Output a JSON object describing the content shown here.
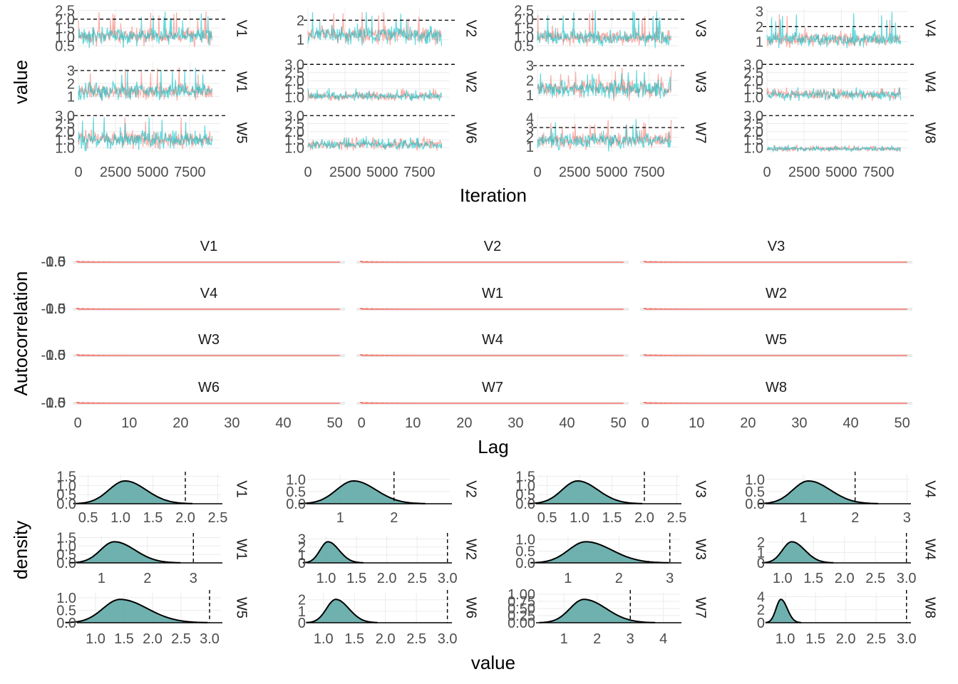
{
  "chart_data": [
    {
      "type": "line",
      "kind": "trace",
      "xlabel": "Iteration",
      "ylabel": "value",
      "grid": true,
      "legend": "none",
      "series_colors": [
        "#f8766d",
        "#00bfc4"
      ],
      "reference_line": "dashed",
      "x_ticks": [
        "0",
        "2500",
        "5000",
        "7500"
      ],
      "xlim": [
        0,
        9500
      ],
      "panels": [
        {
          "label": "V1",
          "ylim": [
            0.35,
            2.6
          ],
          "y_ticks": [
            "0.5",
            "1.0",
            "1.5",
            "2.0",
            "2.5"
          ],
          "ref": 2.0,
          "center": 1.05,
          "spread": 0.22,
          "peak": 2.45
        },
        {
          "label": "V2",
          "ylim": [
            0.55,
            2.6
          ],
          "y_ticks": [
            "1",
            "2"
          ],
          "ref": 2.0,
          "center": 1.25,
          "spread": 0.22,
          "peak": 2.45
        },
        {
          "label": "V3",
          "ylim": [
            0.35,
            2.6
          ],
          "y_ticks": [
            "0.5",
            "1.0",
            "1.5",
            "2.0",
            "2.5"
          ],
          "ref": 2.0,
          "center": 0.95,
          "spread": 0.2,
          "peak": 2.5
        },
        {
          "label": "V4",
          "ylim": [
            0.55,
            3.2
          ],
          "y_ticks": [
            "1",
            "2",
            "3"
          ],
          "ref": 2.0,
          "center": 1.15,
          "spread": 0.22,
          "peak": 3.0
        },
        {
          "label": "W1",
          "ylim": [
            0.65,
            3.6
          ],
          "y_ticks": [
            "1",
            "2",
            "3"
          ],
          "ref": 3.0,
          "center": 1.4,
          "spread": 0.3,
          "peak": 3.3
        },
        {
          "label": "W2",
          "ylim": [
            0.75,
            3.1
          ],
          "y_ticks": [
            "1.0",
            "1.5",
            "2.0",
            "2.5",
            "3.0"
          ],
          "ref": 3.0,
          "center": 1.05,
          "spread": 0.12,
          "peak": 1.55
        },
        {
          "label": "W3",
          "ylim": [
            0.6,
            3.2
          ],
          "y_ticks": [
            "1",
            "2",
            "3"
          ],
          "ref": 3.0,
          "center": 1.45,
          "spread": 0.3,
          "peak": 2.9
        },
        {
          "label": "W4",
          "ylim": [
            0.75,
            3.1
          ],
          "y_ticks": [
            "1.0",
            "1.5",
            "2.0",
            "2.5",
            "3.0"
          ],
          "ref": 3.0,
          "center": 1.15,
          "spread": 0.14,
          "peak": 1.6
        },
        {
          "label": "W5",
          "ylim": [
            0.75,
            3.1
          ],
          "y_ticks": [
            "1.0",
            "1.5",
            "2.0",
            "2.5",
            "3.0"
          ],
          "ref": 3.0,
          "center": 1.5,
          "spread": 0.26,
          "peak": 2.95
        },
        {
          "label": "W6",
          "ylim": [
            0.75,
            3.1
          ],
          "y_ticks": [
            "1.0",
            "1.5",
            "2.0",
            "2.5",
            "3.0"
          ],
          "ref": 3.0,
          "center": 1.2,
          "spread": 0.14,
          "peak": 1.75
        },
        {
          "label": "W7",
          "ylim": [
            0.5,
            4.4
          ],
          "y_ticks": [
            "1",
            "2",
            "3",
            "4"
          ],
          "ref": 3.0,
          "center": 1.65,
          "spread": 0.4,
          "peak": 4.0
        },
        {
          "label": "W8",
          "ylim": [
            0.75,
            3.1
          ],
          "y_ticks": [
            "1.0",
            "1.5",
            "2.0",
            "2.5",
            "3.0"
          ],
          "ref": 3.0,
          "center": 0.93,
          "spread": 0.07,
          "peak": 1.2
        }
      ]
    },
    {
      "type": "bar",
      "kind": "autocorrelation",
      "xlabel": "Lag",
      "ylabel": "Autocorrelation",
      "legend": "none",
      "bar_color": "#f8766d",
      "x_ticks": [
        "0",
        "10",
        "20",
        "30",
        "40",
        "50"
      ],
      "xlim": [
        -1,
        52
      ],
      "y_ticks": [
        "-1.0",
        "-0.5",
        "0.0",
        "0.5",
        "1.0"
      ],
      "panels": [
        "V1",
        "V2",
        "V3",
        "V4",
        "W1",
        "W2",
        "W3",
        "W4",
        "W5",
        "W6",
        "W7",
        "W8"
      ]
    },
    {
      "type": "area",
      "kind": "density",
      "xlabel": "value",
      "ylabel": "density",
      "grid": true,
      "legend": "none",
      "fill_color": "#5fa8a6",
      "reference_line": "dashed",
      "panels": [
        {
          "label": "V1",
          "xlim": [
            0.35,
            2.55
          ],
          "x_ticks": [
            "0.5",
            "1.0",
            "1.5",
            "2.0",
            "2.5"
          ],
          "y_ticks": [
            "0.0",
            "0.5",
            "1.0",
            "1.5"
          ],
          "ylim": [
            0,
            1.6
          ],
          "ref": 2.0,
          "mean": 1.07,
          "sd": 0.25,
          "skew": 1.3
        },
        {
          "label": "V2",
          "xlim": [
            0.4,
            3.05
          ],
          "x_ticks": [
            "1",
            "2"
          ],
          "y_ticks": [
            "0.0",
            "0.5",
            "1.0"
          ],
          "ylim": [
            0,
            1.2
          ],
          "ref": 2.0,
          "mean": 1.25,
          "sd": 0.32,
          "skew": 1.3
        },
        {
          "label": "V3",
          "xlim": [
            0.35,
            2.55
          ],
          "x_ticks": [
            "0.5",
            "1.0",
            "1.5",
            "2.0",
            "2.5"
          ],
          "y_ticks": [
            "0.0",
            "0.5",
            "1.0",
            "1.5"
          ],
          "ylim": [
            0,
            1.6
          ],
          "ref": 2.0,
          "mean": 0.97,
          "sd": 0.24,
          "skew": 1.3
        },
        {
          "label": "V4",
          "xlim": [
            0.3,
            3.05
          ],
          "x_ticks": [
            "1",
            "2",
            "3"
          ],
          "y_ticks": [
            "0.0",
            "0.5",
            "1.0"
          ],
          "ylim": [
            0,
            1.2
          ],
          "ref": 2.0,
          "mean": 1.1,
          "sd": 0.3,
          "skew": 1.4
        },
        {
          "label": "W1",
          "xlim": [
            0.5,
            3.6
          ],
          "x_ticks": [
            "1",
            "2",
            "3"
          ],
          "y_ticks": [
            "0.0",
            "0.5",
            "1.0",
            "1.5"
          ],
          "ylim": [
            0,
            1.6
          ],
          "ref": 3.0,
          "mean": 1.28,
          "sd": 0.3,
          "skew": 1.5
        },
        {
          "label": "W2",
          "xlim": [
            0.7,
            3.05
          ],
          "x_ticks": [
            "1.0",
            "1.5",
            "2.0",
            "2.5",
            "3.0"
          ],
          "y_ticks": [
            "0",
            "1",
            "2",
            "3"
          ],
          "ylim": [
            0,
            3.4
          ],
          "ref": 3.0,
          "mean": 1.03,
          "sd": 0.13,
          "skew": 1.4
        },
        {
          "label": "W3",
          "xlim": [
            0.4,
            3.2
          ],
          "x_ticks": [
            "1",
            "2",
            "3"
          ],
          "y_ticks": [
            "0.0",
            "0.5",
            "1.0"
          ],
          "ylim": [
            0,
            1.15
          ],
          "ref": 3.0,
          "mean": 1.35,
          "sd": 0.34,
          "skew": 1.5
        },
        {
          "label": "W4",
          "xlim": [
            0.75,
            3.05
          ],
          "x_ticks": [
            "1.0",
            "1.5",
            "2.0",
            "2.5",
            "3.0"
          ],
          "y_ticks": [
            "0",
            "1",
            "2"
          ],
          "ylim": [
            0,
            2.6
          ],
          "ref": 3.0,
          "mean": 1.15,
          "sd": 0.15,
          "skew": 1.4
        },
        {
          "label": "W5",
          "xlim": [
            0.7,
            3.2
          ],
          "x_ticks": [
            "1.0",
            "1.5",
            "2.0",
            "2.5",
            "3.0"
          ],
          "y_ticks": [
            "0.0",
            "0.5",
            "1.0"
          ],
          "ylim": [
            0,
            1.2
          ],
          "ref": 3.0,
          "mean": 1.43,
          "sd": 0.3,
          "skew": 1.6
        },
        {
          "label": "W6",
          "xlim": [
            0.75,
            3.05
          ],
          "x_ticks": [
            "1.0",
            "1.5",
            "2.0",
            "2.5",
            "3.0"
          ],
          "y_ticks": [
            "0",
            "1",
            "2"
          ],
          "ylim": [
            0,
            2.6
          ],
          "ref": 3.0,
          "mean": 1.2,
          "sd": 0.15,
          "skew": 1.4
        },
        {
          "label": "W7",
          "xlim": [
            0.2,
            4.5
          ],
          "x_ticks": [
            "1",
            "2",
            "3",
            "4"
          ],
          "y_ticks": [
            "0.00",
            "0.25",
            "0.50",
            "0.75",
            "1.00"
          ],
          "ylim": [
            0,
            1.05
          ],
          "ref": 3.0,
          "mean": 1.6,
          "sd": 0.42,
          "skew": 1.6
        },
        {
          "label": "W8",
          "xlim": [
            0.7,
            3.05
          ],
          "x_ticks": [
            "1.0",
            "1.5",
            "2.0",
            "2.5",
            "3.0"
          ],
          "y_ticks": [
            "0",
            "2",
            "4"
          ],
          "ylim": [
            0,
            4.6
          ],
          "ref": 3.0,
          "mean": 0.93,
          "sd": 0.08,
          "skew": 1.3
        }
      ]
    }
  ]
}
